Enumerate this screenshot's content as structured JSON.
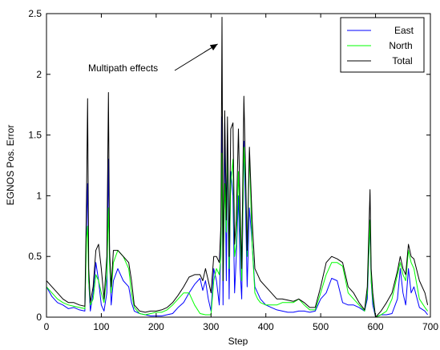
{
  "chart_data": {
    "type": "line",
    "title": "",
    "xlabel": "Step",
    "ylabel": "EGNOS Pos. Error",
    "xlim": [
      0,
      700
    ],
    "ylim": [
      0,
      2.5
    ],
    "xticks": [
      0,
      100,
      200,
      300,
      400,
      500,
      600,
      700
    ],
    "yticks": [
      0,
      0.5,
      1,
      1.5,
      2,
      2.5
    ],
    "xtick_labels": [
      "0",
      "100",
      "200",
      "300",
      "400",
      "500",
      "600",
      "700"
    ],
    "ytick_labels": [
      "0",
      "0.5",
      "1",
      "1.5",
      "2",
      "2.5"
    ],
    "grid": false,
    "legend_position": "top-right",
    "annotation": {
      "text": "Multipath effects",
      "points_to": [
        318,
        2.25
      ]
    },
    "series": [
      {
        "name": "East",
        "color": "#0000ff",
        "points": [
          [
            0,
            0.25
          ],
          [
            10,
            0.17
          ],
          [
            20,
            0.12
          ],
          [
            30,
            0.1
          ],
          [
            40,
            0.07
          ],
          [
            50,
            0.08
          ],
          [
            60,
            0.06
          ],
          [
            70,
            0.05
          ],
          [
            73,
            0.8
          ],
          [
            75,
            1.1
          ],
          [
            77,
            0.3
          ],
          [
            80,
            0.05
          ],
          [
            85,
            0.2
          ],
          [
            90,
            0.45
          ],
          [
            95,
            0.3
          ],
          [
            100,
            0.1
          ],
          [
            105,
            0.05
          ],
          [
            110,
            0.2
          ],
          [
            113,
            1.3
          ],
          [
            115,
            0.5
          ],
          [
            118,
            0.1
          ],
          [
            122,
            0.3
          ],
          [
            130,
            0.4
          ],
          [
            140,
            0.3
          ],
          [
            150,
            0.25
          ],
          [
            155,
            0.12
          ],
          [
            160,
            0.05
          ],
          [
            170,
            0.03
          ],
          [
            180,
            0.02
          ],
          [
            190,
            0.01
          ],
          [
            200,
            0.01
          ],
          [
            210,
            0.01
          ],
          [
            220,
            0.02
          ],
          [
            230,
            0.03
          ],
          [
            240,
            0.08
          ],
          [
            250,
            0.12
          ],
          [
            260,
            0.2
          ],
          [
            270,
            0.27
          ],
          [
            280,
            0.32
          ],
          [
            285,
            0.22
          ],
          [
            290,
            0.3
          ],
          [
            295,
            0.15
          ],
          [
            300,
            0.05
          ],
          [
            305,
            0.4
          ],
          [
            310,
            0.3
          ],
          [
            315,
            0.1
          ],
          [
            318,
            0.6
          ],
          [
            320,
            1.65
          ],
          [
            322,
            0.1
          ],
          [
            325,
            1.6
          ],
          [
            328,
            0.3
          ],
          [
            330,
            1.5
          ],
          [
            333,
            0.15
          ],
          [
            336,
            1.2
          ],
          [
            340,
            1.0
          ],
          [
            343,
            0.2
          ],
          [
            346,
            0.5
          ],
          [
            350,
            1.0
          ],
          [
            353,
            0.4
          ],
          [
            356,
            0.15
          ],
          [
            360,
            1.45
          ],
          [
            363,
            0.9
          ],
          [
            366,
            0.25
          ],
          [
            370,
            0.9
          ],
          [
            375,
            0.6
          ],
          [
            380,
            0.25
          ],
          [
            385,
            0.2
          ],
          [
            390,
            0.15
          ],
          [
            400,
            0.1
          ],
          [
            410,
            0.08
          ],
          [
            420,
            0.06
          ],
          [
            430,
            0.05
          ],
          [
            440,
            0.04
          ],
          [
            450,
            0.04
          ],
          [
            460,
            0.05
          ],
          [
            470,
            0.05
          ],
          [
            480,
            0.04
          ],
          [
            490,
            0.05
          ],
          [
            500,
            0.15
          ],
          [
            510,
            0.2
          ],
          [
            520,
            0.32
          ],
          [
            530,
            0.3
          ],
          [
            540,
            0.12
          ],
          [
            550,
            0.1
          ],
          [
            560,
            0.1
          ],
          [
            570,
            0.08
          ],
          [
            580,
            0.05
          ],
          [
            585,
            0.15
          ],
          [
            590,
            0.8
          ],
          [
            592,
            0.3
          ],
          [
            595,
            0.1
          ],
          [
            600,
            0.0
          ],
          [
            610,
            0.02
          ],
          [
            620,
            0.02
          ],
          [
            630,
            0.03
          ],
          [
            640,
            0.15
          ],
          [
            645,
            0.4
          ],
          [
            650,
            0.2
          ],
          [
            655,
            0.1
          ],
          [
            660,
            0.4
          ],
          [
            665,
            0.2
          ],
          [
            670,
            0.25
          ],
          [
            680,
            0.08
          ],
          [
            690,
            0.05
          ],
          [
            695,
            0.02
          ]
        ]
      },
      {
        "name": "North",
        "color": "#00ff00",
        "points": [
          [
            0,
            0.25
          ],
          [
            10,
            0.2
          ],
          [
            20,
            0.15
          ],
          [
            30,
            0.12
          ],
          [
            40,
            0.1
          ],
          [
            50,
            0.09
          ],
          [
            60,
            0.08
          ],
          [
            70,
            0.07
          ],
          [
            73,
            0.65
          ],
          [
            75,
            0.75
          ],
          [
            77,
            0.3
          ],
          [
            80,
            0.1
          ],
          [
            85,
            0.15
          ],
          [
            90,
            0.35
          ],
          [
            95,
            0.3
          ],
          [
            100,
            0.2
          ],
          [
            105,
            0.12
          ],
          [
            110,
            0.35
          ],
          [
            113,
            0.9
          ],
          [
            115,
            0.45
          ],
          [
            118,
            0.2
          ],
          [
            122,
            0.45
          ],
          [
            130,
            0.55
          ],
          [
            140,
            0.5
          ],
          [
            150,
            0.4
          ],
          [
            155,
            0.2
          ],
          [
            160,
            0.08
          ],
          [
            170,
            0.03
          ],
          [
            180,
            0.02
          ],
          [
            190,
            0.03
          ],
          [
            200,
            0.04
          ],
          [
            210,
            0.04
          ],
          [
            220,
            0.06
          ],
          [
            230,
            0.1
          ],
          [
            240,
            0.15
          ],
          [
            250,
            0.2
          ],
          [
            260,
            0.2
          ],
          [
            270,
            0.1
          ],
          [
            280,
            0.03
          ],
          [
            290,
            0.02
          ],
          [
            300,
            0.02
          ],
          [
            305,
            0.3
          ],
          [
            310,
            0.4
          ],
          [
            315,
            0.35
          ],
          [
            318,
            0.5
          ],
          [
            320,
            1.35
          ],
          [
            322,
            0.3
          ],
          [
            325,
            1.1
          ],
          [
            328,
            0.7
          ],
          [
            330,
            1.45
          ],
          [
            333,
            0.4
          ],
          [
            336,
            1.1
          ],
          [
            340,
            1.3
          ],
          [
            343,
            0.5
          ],
          [
            346,
            0.6
          ],
          [
            350,
            1.2
          ],
          [
            353,
            0.7
          ],
          [
            356,
            0.3
          ],
          [
            360,
            1.4
          ],
          [
            363,
            1.1
          ],
          [
            366,
            0.5
          ],
          [
            370,
            1.35
          ],
          [
            375,
            0.6
          ],
          [
            380,
            0.2
          ],
          [
            385,
            0.15
          ],
          [
            390,
            0.12
          ],
          [
            400,
            0.1
          ],
          [
            410,
            0.1
          ],
          [
            420,
            0.1
          ],
          [
            430,
            0.12
          ],
          [
            440,
            0.12
          ],
          [
            450,
            0.12
          ],
          [
            460,
            0.15
          ],
          [
            470,
            0.1
          ],
          [
            480,
            0.06
          ],
          [
            490,
            0.06
          ],
          [
            500,
            0.2
          ],
          [
            510,
            0.35
          ],
          [
            520,
            0.45
          ],
          [
            530,
            0.45
          ],
          [
            540,
            0.42
          ],
          [
            550,
            0.2
          ],
          [
            560,
            0.15
          ],
          [
            570,
            0.1
          ],
          [
            580,
            0.05
          ],
          [
            585,
            0.2
          ],
          [
            590,
            0.8
          ],
          [
            592,
            0.3
          ],
          [
            595,
            0.15
          ],
          [
            600,
            0.0
          ],
          [
            610,
            0.02
          ],
          [
            620,
            0.05
          ],
          [
            630,
            0.15
          ],
          [
            640,
            0.35
          ],
          [
            645,
            0.45
          ],
          [
            650,
            0.35
          ],
          [
            655,
            0.3
          ],
          [
            660,
            0.55
          ],
          [
            665,
            0.45
          ],
          [
            670,
            0.4
          ],
          [
            680,
            0.15
          ],
          [
            690,
            0.08
          ],
          [
            695,
            0.05
          ]
        ]
      },
      {
        "name": "Total",
        "color": "#000000",
        "points": [
          [
            0,
            0.3
          ],
          [
            10,
            0.25
          ],
          [
            20,
            0.2
          ],
          [
            30,
            0.15
          ],
          [
            40,
            0.12
          ],
          [
            50,
            0.12
          ],
          [
            60,
            0.1
          ],
          [
            70,
            0.09
          ],
          [
            73,
            1.0
          ],
          [
            75,
            1.8
          ],
          [
            77,
            0.4
          ],
          [
            80,
            0.12
          ],
          [
            85,
            0.25
          ],
          [
            90,
            0.55
          ],
          [
            95,
            0.6
          ],
          [
            100,
            0.4
          ],
          [
            105,
            0.15
          ],
          [
            110,
            0.5
          ],
          [
            113,
            1.85
          ],
          [
            115,
            0.55
          ],
          [
            118,
            0.25
          ],
          [
            122,
            0.55
          ],
          [
            130,
            0.55
          ],
          [
            140,
            0.5
          ],
          [
            150,
            0.45
          ],
          [
            155,
            0.3
          ],
          [
            160,
            0.1
          ],
          [
            170,
            0.05
          ],
          [
            180,
            0.04
          ],
          [
            190,
            0.05
          ],
          [
            200,
            0.05
          ],
          [
            210,
            0.06
          ],
          [
            220,
            0.08
          ],
          [
            230,
            0.12
          ],
          [
            240,
            0.18
          ],
          [
            250,
            0.25
          ],
          [
            260,
            0.33
          ],
          [
            270,
            0.35
          ],
          [
            280,
            0.35
          ],
          [
            285,
            0.3
          ],
          [
            290,
            0.4
          ],
          [
            295,
            0.3
          ],
          [
            300,
            0.2
          ],
          [
            305,
            0.5
          ],
          [
            310,
            0.5
          ],
          [
            315,
            0.45
          ],
          [
            318,
            0.75
          ],
          [
            320,
            2.47
          ],
          [
            322,
            0.3
          ],
          [
            325,
            1.7
          ],
          [
            328,
            0.8
          ],
          [
            330,
            1.65
          ],
          [
            333,
            0.5
          ],
          [
            336,
            1.55
          ],
          [
            340,
            1.6
          ],
          [
            343,
            0.6
          ],
          [
            346,
            0.8
          ],
          [
            350,
            1.55
          ],
          [
            353,
            0.9
          ],
          [
            356,
            0.4
          ],
          [
            360,
            1.82
          ],
          [
            363,
            1.2
          ],
          [
            366,
            0.55
          ],
          [
            370,
            1.4
          ],
          [
            375,
            0.8
          ],
          [
            380,
            0.4
          ],
          [
            385,
            0.35
          ],
          [
            390,
            0.3
          ],
          [
            400,
            0.25
          ],
          [
            410,
            0.2
          ],
          [
            420,
            0.15
          ],
          [
            430,
            0.15
          ],
          [
            440,
            0.14
          ],
          [
            450,
            0.13
          ],
          [
            460,
            0.15
          ],
          [
            470,
            0.12
          ],
          [
            480,
            0.08
          ],
          [
            490,
            0.08
          ],
          [
            500,
            0.25
          ],
          [
            510,
            0.45
          ],
          [
            520,
            0.5
          ],
          [
            530,
            0.48
          ],
          [
            540,
            0.45
          ],
          [
            550,
            0.25
          ],
          [
            560,
            0.2
          ],
          [
            570,
            0.12
          ],
          [
            580,
            0.06
          ],
          [
            585,
            0.25
          ],
          [
            590,
            1.05
          ],
          [
            592,
            0.4
          ],
          [
            595,
            0.2
          ],
          [
            600,
            0.0
          ],
          [
            610,
            0.05
          ],
          [
            620,
            0.12
          ],
          [
            630,
            0.2
          ],
          [
            640,
            0.38
          ],
          [
            645,
            0.5
          ],
          [
            650,
            0.4
          ],
          [
            655,
            0.35
          ],
          [
            660,
            0.6
          ],
          [
            665,
            0.5
          ],
          [
            670,
            0.48
          ],
          [
            680,
            0.3
          ],
          [
            690,
            0.2
          ],
          [
            695,
            0.1
          ]
        ]
      }
    ]
  }
}
